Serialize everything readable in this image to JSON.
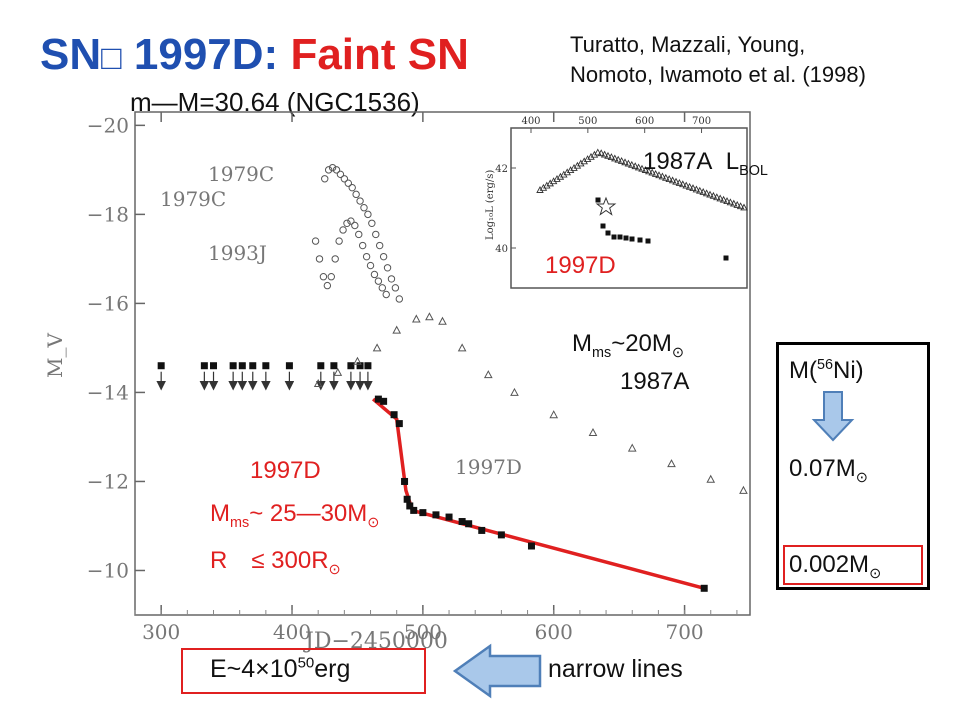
{
  "title": {
    "prefix": "SN",
    "box_glyph": "□",
    "number": " 1997D: ",
    "highlight": "Faint SN"
  },
  "reference": {
    "line1": "Turatto, Mazzali, Young,",
    "line2": "Nomoto, Iwamoto et al. (1998)"
  },
  "distance_modulus": "m—M=30.64 (NGC1536)",
  "labels": {
    "sn1979c": "1979C",
    "sn1993j": "1993J",
    "sn1997d_plot": "1997D",
    "sn1997d_red": "1997D",
    "sn1987a": "1987A",
    "mass_1987a_m": "M",
    "mass_1987a_sub": "ms",
    "mass_1987a_val": "~20M",
    "mass_1997d_m": "M",
    "mass_1997d_sub": "ms",
    "mass_1997d_val": "~ 25—30M",
    "radius_1997d": "R　≤ 300R",
    "sun": "⊙"
  },
  "inset": {
    "label_1987a": "1987A",
    "lbol_L": "L",
    "lbol_sub": "BOL",
    "label_1997d": "1997D",
    "ylabel": "Log₁₀L (erg/s)",
    "x_ticks": [
      "400",
      "500",
      "600",
      "700"
    ],
    "y_ticks": [
      "42",
      "40"
    ]
  },
  "ni_box": {
    "title_m": "M(",
    "title_sup": "56",
    "title_rest": "Ni)",
    "value1": "0.07M",
    "value2": "0.002M",
    "sun": "⊙"
  },
  "energy": {
    "prefix": "E~4×10",
    "sup": "50",
    "unit": "erg"
  },
  "narrow_lines": "narrow lines",
  "colors": {
    "title_blue": "#1f4fb0",
    "accent_red": "#e02020",
    "arrow_fill": "#a9c8ea",
    "arrow_stroke": "#4f7fb8"
  },
  "chart_data": {
    "type": "scatter",
    "xlabel": "JD−2450000",
    "ylabel": "M_V",
    "xlim": [
      280,
      750
    ],
    "ylim": [
      -9,
      -20.3
    ],
    "x_ticks": [
      300,
      400,
      500,
      600,
      700
    ],
    "y_ticks": [
      -20,
      -18,
      -16,
      -14,
      -12,
      -10
    ],
    "series": [
      {
        "name": "1997D",
        "style": "red-line",
        "points": [
          [
            462,
            -13.85
          ],
          [
            480,
            -13.4
          ],
          [
            487,
            -11.8
          ],
          [
            492,
            -11.35
          ],
          [
            715,
            -9.6
          ]
        ]
      },
      {
        "name": "1997D",
        "style": "filled-square",
        "points": [
          [
            466,
            -13.85
          ],
          [
            470,
            -13.8
          ],
          [
            478,
            -13.5
          ],
          [
            482,
            -13.3
          ],
          [
            486,
            -12.0
          ],
          [
            488,
            -11.6
          ],
          [
            490,
            -11.45
          ],
          [
            493,
            -11.35
          ],
          [
            500,
            -11.3
          ],
          [
            510,
            -11.25
          ],
          [
            520,
            -11.2
          ],
          [
            530,
            -11.1
          ],
          [
            535,
            -11.05
          ],
          [
            545,
            -10.9
          ],
          [
            560,
            -10.8
          ],
          [
            583,
            -10.55
          ],
          [
            715,
            -9.6
          ]
        ]
      },
      {
        "name": "1997D upper limits",
        "style": "limit-arrow",
        "points": [
          [
            300,
            -14.6
          ],
          [
            333,
            -14.6
          ],
          [
            340,
            -14.6
          ],
          [
            355,
            -14.6
          ],
          [
            362,
            -14.6
          ],
          [
            370,
            -14.6
          ],
          [
            380,
            -14.6
          ],
          [
            398,
            -14.6
          ],
          [
            422,
            -14.6
          ],
          [
            432,
            -14.6
          ],
          [
            445,
            -14.6
          ],
          [
            452,
            -14.6
          ],
          [
            458,
            -14.6
          ]
        ]
      },
      {
        "name": "1979C",
        "style": "open-circle",
        "points": [
          [
            425,
            -18.8
          ],
          [
            428,
            -19.0
          ],
          [
            431,
            -19.05
          ],
          [
            434,
            -19.0
          ],
          [
            437,
            -18.9
          ],
          [
            440,
            -18.8
          ],
          [
            443,
            -18.7
          ],
          [
            446,
            -18.6
          ],
          [
            449,
            -18.45
          ],
          [
            452,
            -18.3
          ],
          [
            455,
            -18.15
          ],
          [
            458,
            -18.0
          ],
          [
            461,
            -17.8
          ],
          [
            464,
            -17.55
          ],
          [
            467,
            -17.3
          ],
          [
            470,
            -17.05
          ],
          [
            473,
            -16.8
          ],
          [
            476,
            -16.55
          ],
          [
            479,
            -16.35
          ],
          [
            482,
            -16.1
          ]
        ]
      },
      {
        "name": "1993J",
        "style": "open-circle",
        "points": [
          [
            418,
            -17.4
          ],
          [
            421,
            -17.0
          ],
          [
            424,
            -16.6
          ],
          [
            427,
            -16.4
          ],
          [
            430,
            -16.6
          ],
          [
            433,
            -17.0
          ],
          [
            436,
            -17.4
          ],
          [
            439,
            -17.65
          ],
          [
            442,
            -17.8
          ],
          [
            445,
            -17.85
          ],
          [
            448,
            -17.75
          ],
          [
            451,
            -17.55
          ],
          [
            454,
            -17.3
          ],
          [
            457,
            -17.05
          ],
          [
            460,
            -16.85
          ],
          [
            463,
            -16.65
          ],
          [
            466,
            -16.5
          ],
          [
            469,
            -16.35
          ],
          [
            472,
            -16.2
          ]
        ]
      },
      {
        "name": "1987A",
        "style": "open-triangle",
        "points": [
          [
            420,
            -14.2
          ],
          [
            435,
            -14.45
          ],
          [
            450,
            -14.7
          ],
          [
            465,
            -15.0
          ],
          [
            480,
            -15.4
          ],
          [
            495,
            -15.65
          ],
          [
            505,
            -15.7
          ],
          [
            515,
            -15.6
          ],
          [
            530,
            -15.0
          ],
          [
            550,
            -14.4
          ],
          [
            570,
            -14.0
          ],
          [
            600,
            -13.5
          ],
          [
            630,
            -13.1
          ],
          [
            660,
            -12.75
          ],
          [
            690,
            -12.4
          ],
          [
            720,
            -12.05
          ],
          [
            745,
            -11.8
          ]
        ]
      }
    ]
  }
}
